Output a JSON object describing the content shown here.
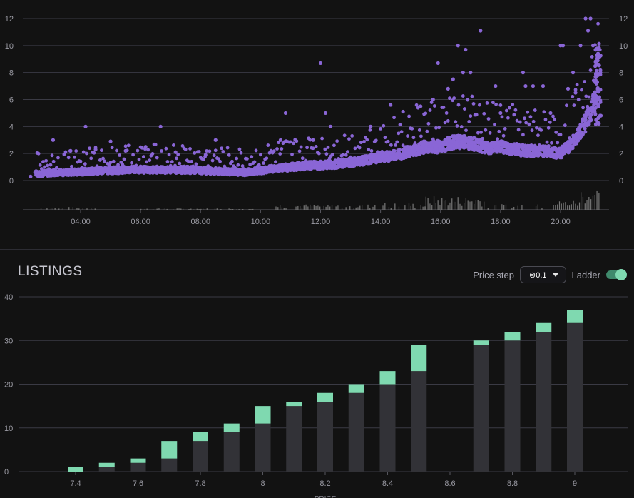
{
  "listings": {
    "title": "LISTINGS",
    "price_step_label": "Price step",
    "price_step_value": "⊜0.1",
    "ladder_label": "Ladder",
    "ladder_on": true,
    "x_axis_label": "PRICE"
  },
  "colors": {
    "background": "#121212",
    "scatter": "#8a66d6",
    "volume": "#777777",
    "grid": "#3a3a44",
    "bar_base": "#323237",
    "bar_top": "#7fd9b0"
  },
  "chart_data": [
    {
      "type": "scatter",
      "title": "",
      "x_tick_labels": [
        "04:00",
        "06:00",
        "08:00",
        "10:00",
        "12:00",
        "14:00",
        "16:00",
        "18:00",
        "20:00"
      ],
      "y_tick_labels": [
        "0",
        "2",
        "4",
        "6",
        "8",
        "10",
        "12"
      ],
      "xlim": [
        "02:10",
        "21:45"
      ],
      "ylim": [
        0,
        12
      ],
      "grid": true,
      "trend": [
        {
          "x": "02:30",
          "y": 0.5
        },
        {
          "x": "03:30",
          "y": 0.6
        },
        {
          "x": "04:30",
          "y": 0.7
        },
        {
          "x": "05:30",
          "y": 0.8
        },
        {
          "x": "06:30",
          "y": 0.8
        },
        {
          "x": "07:30",
          "y": 0.8
        },
        {
          "x": "08:30",
          "y": 0.7
        },
        {
          "x": "09:30",
          "y": 0.6
        },
        {
          "x": "10:30",
          "y": 0.9
        },
        {
          "x": "11:30",
          "y": 1.1
        },
        {
          "x": "12:30",
          "y": 1.2
        },
        {
          "x": "13:30",
          "y": 1.5
        },
        {
          "x": "14:30",
          "y": 1.9
        },
        {
          "x": "15:00",
          "y": 2.2
        },
        {
          "x": "15:30",
          "y": 2.5
        },
        {
          "x": "16:00",
          "y": 2.5
        },
        {
          "x": "16:30",
          "y": 2.9
        },
        {
          "x": "17:00",
          "y": 2.8
        },
        {
          "x": "17:30",
          "y": 2.4
        },
        {
          "x": "18:00",
          "y": 2.5
        },
        {
          "x": "18:30",
          "y": 2.3
        },
        {
          "x": "19:00",
          "y": 2.2
        },
        {
          "x": "19:30",
          "y": 2.2
        },
        {
          "x": "20:00",
          "y": 2.0
        },
        {
          "x": "20:30",
          "y": 3.0
        },
        {
          "x": "21:00",
          "y": 5.0
        },
        {
          "x": "21:10",
          "y": 6.0
        },
        {
          "x": "21:15",
          "y": 10.0
        }
      ],
      "outliers": [
        {
          "x": "02:20",
          "y": 0.3
        },
        {
          "x": "03:05",
          "y": 3.0
        },
        {
          "x": "03:40",
          "y": 2.2
        },
        {
          "x": "04:10",
          "y": 4.0
        },
        {
          "x": "04:30",
          "y": 2.3
        },
        {
          "x": "05:00",
          "y": 2.9
        },
        {
          "x": "05:30",
          "y": 2.2
        },
        {
          "x": "06:10",
          "y": 2.5
        },
        {
          "x": "06:40",
          "y": 4.0
        },
        {
          "x": "07:10",
          "y": 2.1
        },
        {
          "x": "08:10",
          "y": 1.9
        },
        {
          "x": "08:30",
          "y": 3.0
        },
        {
          "x": "10:40",
          "y": 3.0
        },
        {
          "x": "10:50",
          "y": 5.0
        },
        {
          "x": "11:45",
          "y": 3.0
        },
        {
          "x": "12:00",
          "y": 8.7
        },
        {
          "x": "12:10",
          "y": 5.0
        },
        {
          "x": "12:20",
          "y": 4.0
        },
        {
          "x": "13:40",
          "y": 4.0
        },
        {
          "x": "14:20",
          "y": 5.6
        },
        {
          "x": "14:45",
          "y": 5.1
        },
        {
          "x": "15:20",
          "y": 5.5
        },
        {
          "x": "15:45",
          "y": 6.0
        },
        {
          "x": "15:55",
          "y": 8.7
        },
        {
          "x": "16:15",
          "y": 6.8
        },
        {
          "x": "16:25",
          "y": 7.5
        },
        {
          "x": "16:35",
          "y": 10.0
        },
        {
          "x": "16:45",
          "y": 8.0
        },
        {
          "x": "16:50",
          "y": 9.7
        },
        {
          "x": "17:00",
          "y": 8.0
        },
        {
          "x": "17:20",
          "y": 11.1
        },
        {
          "x": "17:50",
          "y": 7.0
        },
        {
          "x": "18:00",
          "y": 5.0
        },
        {
          "x": "18:45",
          "y": 8.0
        },
        {
          "x": "18:50",
          "y": 7.0
        },
        {
          "x": "19:05",
          "y": 7.0
        },
        {
          "x": "19:25",
          "y": 7.0
        },
        {
          "x": "19:40",
          "y": 5.0
        },
        {
          "x": "20:00",
          "y": 10.0
        },
        {
          "x": "20:05",
          "y": 10.0
        },
        {
          "x": "20:15",
          "y": 6.8
        },
        {
          "x": "20:25",
          "y": 8.0
        },
        {
          "x": "20:30",
          "y": 6.5
        },
        {
          "x": "20:40",
          "y": 10.0
        },
        {
          "x": "20:50",
          "y": 12.0
        },
        {
          "x": "20:55",
          "y": 11.1
        },
        {
          "x": "21:00",
          "y": 12.0
        },
        {
          "x": "21:05",
          "y": 10.0
        }
      ],
      "volume": {
        "ranges": [
          [
            "02:40",
            "04:30",
            0.1
          ],
          [
            "06:00",
            "09:50",
            0.05
          ],
          [
            "10:30",
            "13:40",
            0.2
          ],
          [
            "13:40",
            "15:30",
            0.25
          ],
          [
            "15:30",
            "17:30",
            0.5
          ],
          [
            "17:30",
            "19:30",
            0.2
          ],
          [
            "19:45",
            "20:40",
            0.35
          ],
          [
            "20:40",
            "21:20",
            0.8
          ]
        ]
      }
    },
    {
      "type": "bar",
      "title": "LISTINGS",
      "xlabel": "PRICE",
      "x": [
        7.4,
        7.5,
        7.6,
        7.7,
        7.8,
        7.9,
        8.0,
        8.1,
        8.2,
        8.3,
        8.4,
        8.5,
        8.7,
        8.8,
        8.9,
        9.0
      ],
      "x_tick_labels": [
        "7.4",
        "7.6",
        "7.8",
        "8",
        "8.2",
        "8.4",
        "8.6",
        "8.8",
        "9"
      ],
      "y_tick_labels": [
        "0",
        "10",
        "20",
        "30",
        "40"
      ],
      "xlim": [
        7.2,
        9.2
      ],
      "ylim": [
        0,
        40
      ],
      "grid": true,
      "series": [
        {
          "values": [
            0,
            1,
            2,
            3,
            7,
            9,
            11,
            15,
            16,
            18,
            20,
            23,
            29,
            30,
            32,
            34
          ]
        },
        {
          "values": [
            1,
            1,
            1,
            4,
            2,
            2,
            4,
            1,
            2,
            2,
            3,
            6,
            1,
            2,
            2,
            3
          ]
        }
      ]
    }
  ]
}
